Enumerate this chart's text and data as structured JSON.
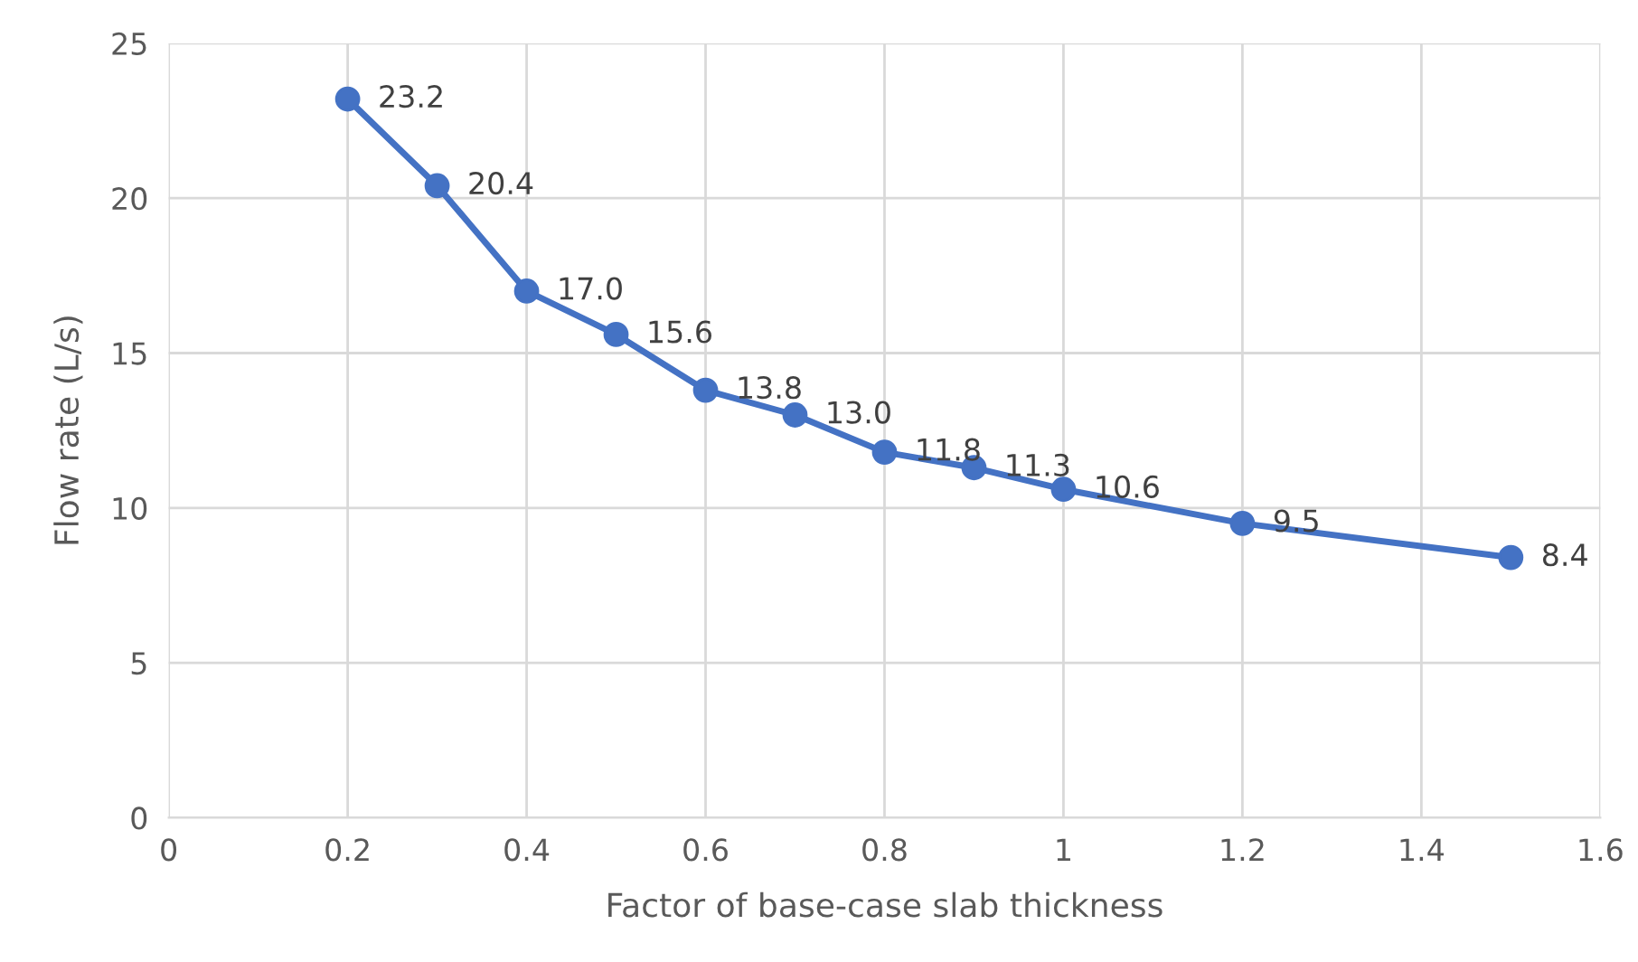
{
  "chart_data": {
    "type": "line",
    "xlabel": "Factor of base-case slab thickness",
    "ylabel": "Flow rate (L/s)",
    "x": [
      0.2,
      0.3,
      0.4,
      0.5,
      0.6,
      0.7,
      0.8,
      0.9,
      1.0,
      1.2,
      1.5
    ],
    "series": [
      {
        "color": "#4472c4",
        "values": [
          23.2,
          20.4,
          17.0,
          15.6,
          13.8,
          13.0,
          11.8,
          11.3,
          10.6,
          9.5,
          8.4
        ],
        "value_labels": [
          "23.2",
          "20.4",
          "17.0",
          "15.6",
          "13.8",
          "13.0",
          "11.8",
          "11.3",
          "10.6",
          "9.5",
          "8.4"
        ]
      }
    ],
    "xlim": [
      0,
      1.6
    ],
    "xticks": [
      0,
      0.2,
      0.4,
      0.6,
      0.8,
      1,
      1.2,
      1.4,
      1.6
    ],
    "ylim": [
      0,
      25
    ],
    "yticks": [
      0,
      5,
      10,
      15,
      20,
      25
    ],
    "grid": true,
    "marker": "circle",
    "line_style": "solid"
  }
}
